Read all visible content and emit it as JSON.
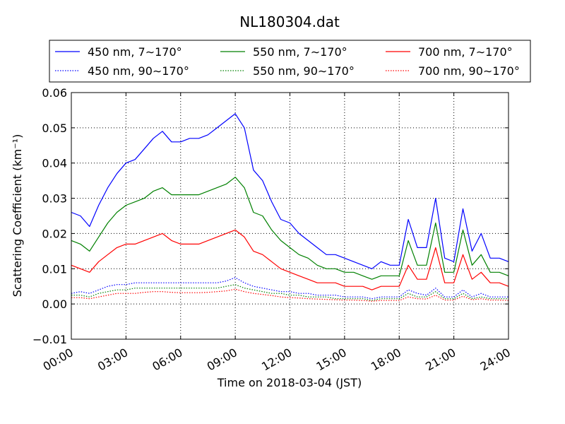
{
  "chart_data": {
    "type": "line",
    "title": "NL180304.dat",
    "xlabel": "Time on 2018-03-04 (JST)",
    "ylabel": "Scattering Coefficient (km⁻¹)",
    "xlim": [
      0,
      24
    ],
    "ylim": [
      -0.01,
      0.06
    ],
    "x_ticks": [
      "00:00",
      "03:00",
      "06:00",
      "09:00",
      "12:00",
      "15:00",
      "18:00",
      "21:00",
      "24:00"
    ],
    "y_ticks": [
      "−0.01",
      "0.00",
      "0.01",
      "0.02",
      "0.03",
      "0.04",
      "0.05",
      "0.06"
    ],
    "grid": true,
    "legend_position": "top",
    "x": [
      0,
      0.5,
      1,
      1.5,
      2,
      2.5,
      3,
      3.5,
      4,
      4.5,
      5,
      5.5,
      6,
      6.5,
      7,
      7.5,
      8,
      8.5,
      9,
      9.5,
      10,
      10.5,
      11,
      11.5,
      12,
      12.5,
      13,
      13.5,
      14,
      14.5,
      15,
      15.5,
      16,
      16.5,
      17,
      17.5,
      18,
      18.5,
      19,
      19.5,
      20,
      20.5,
      21,
      21.5,
      22,
      22.5,
      23,
      23.5,
      24
    ],
    "series": [
      {
        "name": "450 nm, 7∼170°",
        "color": "#0000ff",
        "dash": "solid",
        "values": [
          0.026,
          0.025,
          0.022,
          0.028,
          0.033,
          0.037,
          0.04,
          0.041,
          0.044,
          0.047,
          0.049,
          0.046,
          0.046,
          0.047,
          0.047,
          0.048,
          0.05,
          0.052,
          0.054,
          0.05,
          0.038,
          0.035,
          0.029,
          0.024,
          0.023,
          0.02,
          0.018,
          0.016,
          0.014,
          0.014,
          0.013,
          0.012,
          0.011,
          0.01,
          0.012,
          0.011,
          0.011,
          0.024,
          0.016,
          0.016,
          0.03,
          0.013,
          0.012,
          0.027,
          0.015,
          0.02,
          0.013,
          0.013,
          0.012
        ]
      },
      {
        "name": "550 nm, 7∼170°",
        "color": "#008000",
        "dash": "solid",
        "values": [
          0.018,
          0.017,
          0.015,
          0.019,
          0.023,
          0.026,
          0.028,
          0.029,
          0.03,
          0.032,
          0.033,
          0.031,
          0.031,
          0.031,
          0.031,
          0.032,
          0.033,
          0.034,
          0.036,
          0.033,
          0.026,
          0.025,
          0.021,
          0.018,
          0.016,
          0.014,
          0.013,
          0.011,
          0.01,
          0.01,
          0.009,
          0.009,
          0.008,
          0.007,
          0.008,
          0.008,
          0.008,
          0.018,
          0.011,
          0.011,
          0.023,
          0.009,
          0.009,
          0.021,
          0.011,
          0.014,
          0.009,
          0.009,
          0.008
        ]
      },
      {
        "name": "700 nm, 7∼170°",
        "color": "#ff0000",
        "dash": "solid",
        "values": [
          0.011,
          0.01,
          0.009,
          0.012,
          0.014,
          0.016,
          0.017,
          0.017,
          0.018,
          0.019,
          0.02,
          0.018,
          0.017,
          0.017,
          0.017,
          0.018,
          0.019,
          0.02,
          0.021,
          0.019,
          0.015,
          0.014,
          0.012,
          0.01,
          0.009,
          0.008,
          0.007,
          0.006,
          0.006,
          0.006,
          0.005,
          0.005,
          0.005,
          0.004,
          0.005,
          0.005,
          0.005,
          0.011,
          0.007,
          0.007,
          0.016,
          0.006,
          0.006,
          0.014,
          0.007,
          0.009,
          0.006,
          0.006,
          0.005
        ]
      },
      {
        "name": "450 nm, 90∼170°",
        "color": "#0000ff",
        "dash": "dotted",
        "values": [
          0.003,
          0.0035,
          0.003,
          0.004,
          0.005,
          0.0055,
          0.0055,
          0.006,
          0.006,
          0.006,
          0.006,
          0.006,
          0.006,
          0.006,
          0.006,
          0.006,
          0.006,
          0.0065,
          0.0075,
          0.006,
          0.005,
          0.0045,
          0.004,
          0.0035,
          0.0035,
          0.003,
          0.003,
          0.0025,
          0.0025,
          0.0025,
          0.002,
          0.002,
          0.002,
          0.0015,
          0.002,
          0.002,
          0.002,
          0.004,
          0.003,
          0.0025,
          0.0045,
          0.002,
          0.002,
          0.004,
          0.002,
          0.003,
          0.002,
          0.002,
          0.002
        ]
      },
      {
        "name": "550 nm, 90∼170°",
        "color": "#008000",
        "dash": "dotted",
        "values": [
          0.0025,
          0.0025,
          0.002,
          0.003,
          0.0035,
          0.004,
          0.004,
          0.0045,
          0.0045,
          0.0045,
          0.0045,
          0.0045,
          0.0045,
          0.0045,
          0.0045,
          0.0045,
          0.0045,
          0.005,
          0.0055,
          0.0045,
          0.004,
          0.0035,
          0.003,
          0.003,
          0.0025,
          0.0025,
          0.002,
          0.002,
          0.002,
          0.0015,
          0.0015,
          0.0015,
          0.0015,
          0.001,
          0.0015,
          0.0015,
          0.0015,
          0.003,
          0.002,
          0.002,
          0.0035,
          0.0015,
          0.0015,
          0.003,
          0.0015,
          0.002,
          0.0015,
          0.0015,
          0.0015
        ]
      },
      {
        "name": "700 nm, 90∼170°",
        "color": "#ff0000",
        "dash": "dotted",
        "values": [
          0.0018,
          0.0018,
          0.0015,
          0.002,
          0.0025,
          0.003,
          0.003,
          0.003,
          0.0033,
          0.0035,
          0.0035,
          0.0033,
          0.0032,
          0.0032,
          0.0032,
          0.0033,
          0.0035,
          0.0037,
          0.0042,
          0.0035,
          0.003,
          0.0027,
          0.0024,
          0.002,
          0.0018,
          0.0017,
          0.0015,
          0.0014,
          0.0013,
          0.0012,
          0.0011,
          0.0011,
          0.001,
          0.0008,
          0.001,
          0.001,
          0.001,
          0.002,
          0.0015,
          0.0014,
          0.0025,
          0.0011,
          0.0011,
          0.0022,
          0.0012,
          0.0015,
          0.0011,
          0.0011,
          0.001
        ]
      }
    ]
  }
}
